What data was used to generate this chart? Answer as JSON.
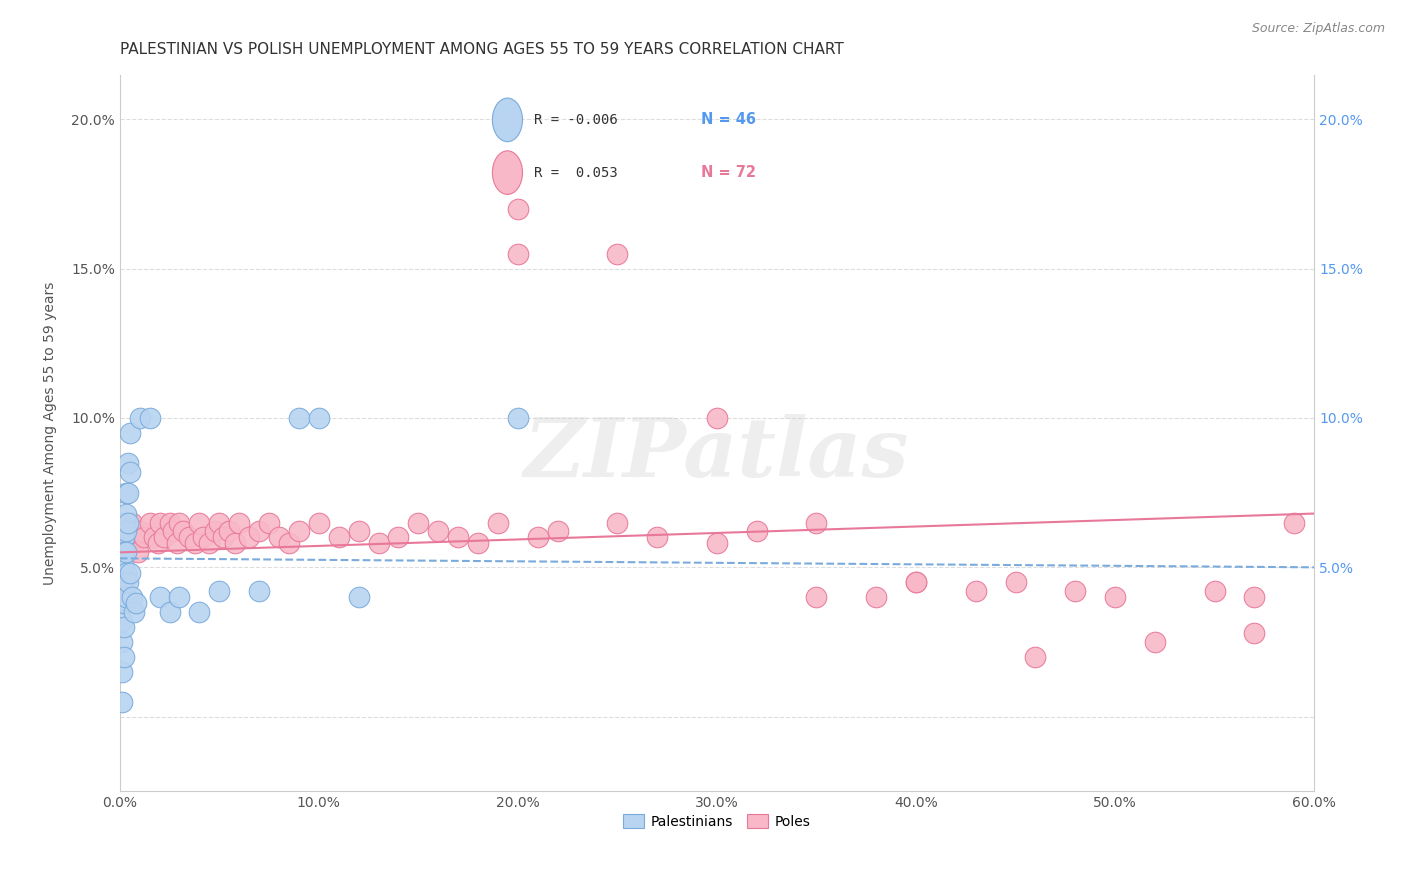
{
  "title": "PALESTINIAN VS POLISH UNEMPLOYMENT AMONG AGES 55 TO 59 YEARS CORRELATION CHART",
  "source": "Source: ZipAtlas.com",
  "ylabel": "Unemployment Among Ages 55 to 59 years",
  "xlim": [
    0,
    0.6
  ],
  "ylim": [
    -0.025,
    0.215
  ],
  "xticks": [
    0.0,
    0.1,
    0.2,
    0.3,
    0.4,
    0.5,
    0.6
  ],
  "xticklabels": [
    "0.0%",
    "10.0%",
    "20.0%",
    "30.0%",
    "40.0%",
    "50.0%",
    "60.0%"
  ],
  "yticks_left": [
    0.0,
    0.05,
    0.1,
    0.15,
    0.2
  ],
  "yticklabels_left": [
    "",
    "5.0%",
    "10.0%",
    "15.0%",
    "20.0%"
  ],
  "yticks_right": [
    0.05,
    0.1,
    0.15,
    0.2
  ],
  "yticklabels_right": [
    "5.0%",
    "10.0%",
    "15.0%",
    "20.0%"
  ],
  "legend_r_blue": "R = -0.006",
  "legend_n_blue": "N = 46",
  "legend_r_pink": "R =  0.053",
  "legend_n_pink": "N = 72",
  "blue_color": "#b8d4f0",
  "pink_color": "#f8b8c8",
  "trend_blue_color": "#7aabdc",
  "trend_pink_color": "#e8789a",
  "blue_x": [
    0.001,
    0.001,
    0.001,
    0.001,
    0.001,
    0.001,
    0.001,
    0.001,
    0.001,
    0.001,
    0.002,
    0.002,
    0.002,
    0.002,
    0.002,
    0.002,
    0.002,
    0.002,
    0.003,
    0.003,
    0.003,
    0.003,
    0.003,
    0.003,
    0.004,
    0.004,
    0.004,
    0.004,
    0.005,
    0.005,
    0.005,
    0.006,
    0.007,
    0.008,
    0.01,
    0.015,
    0.02,
    0.025,
    0.03,
    0.04,
    0.05,
    0.07,
    0.09,
    0.1,
    0.12,
    0.2
  ],
  "blue_y": [
    0.055,
    0.05,
    0.048,
    0.045,
    0.042,
    0.038,
    0.032,
    0.025,
    0.015,
    0.005,
    0.065,
    0.06,
    0.055,
    0.05,
    0.045,
    0.038,
    0.03,
    0.02,
    0.075,
    0.068,
    0.062,
    0.055,
    0.048,
    0.04,
    0.085,
    0.075,
    0.065,
    0.045,
    0.095,
    0.082,
    0.048,
    0.04,
    0.035,
    0.038,
    0.1,
    0.1,
    0.04,
    0.035,
    0.04,
    0.035,
    0.042,
    0.042,
    0.1,
    0.1,
    0.04,
    0.1
  ],
  "pink_x": [
    0.001,
    0.002,
    0.003,
    0.005,
    0.006,
    0.007,
    0.008,
    0.009,
    0.01,
    0.012,
    0.015,
    0.017,
    0.019,
    0.02,
    0.022,
    0.025,
    0.027,
    0.029,
    0.03,
    0.032,
    0.035,
    0.038,
    0.04,
    0.042,
    0.045,
    0.048,
    0.05,
    0.052,
    0.055,
    0.058,
    0.06,
    0.065,
    0.07,
    0.075,
    0.08,
    0.085,
    0.09,
    0.1,
    0.11,
    0.12,
    0.13,
    0.14,
    0.15,
    0.16,
    0.17,
    0.18,
    0.19,
    0.2,
    0.21,
    0.22,
    0.25,
    0.27,
    0.3,
    0.32,
    0.35,
    0.38,
    0.4,
    0.43,
    0.45,
    0.48,
    0.5,
    0.52,
    0.55,
    0.57,
    0.59,
    0.2,
    0.25,
    0.3,
    0.35,
    0.4,
    0.46,
    0.57
  ],
  "pink_y": [
    0.055,
    0.058,
    0.06,
    0.062,
    0.065,
    0.058,
    0.06,
    0.055,
    0.062,
    0.06,
    0.065,
    0.06,
    0.058,
    0.065,
    0.06,
    0.065,
    0.062,
    0.058,
    0.065,
    0.062,
    0.06,
    0.058,
    0.065,
    0.06,
    0.058,
    0.062,
    0.065,
    0.06,
    0.062,
    0.058,
    0.065,
    0.06,
    0.062,
    0.065,
    0.06,
    0.058,
    0.062,
    0.065,
    0.06,
    0.062,
    0.058,
    0.06,
    0.065,
    0.062,
    0.06,
    0.058,
    0.065,
    0.155,
    0.06,
    0.062,
    0.065,
    0.06,
    0.058,
    0.062,
    0.065,
    0.04,
    0.045,
    0.042,
    0.045,
    0.042,
    0.04,
    0.025,
    0.042,
    0.04,
    0.065,
    0.17,
    0.155,
    0.1,
    0.04,
    0.045,
    0.02,
    0.028
  ],
  "background_color": "#ffffff",
  "grid_color": "#dddddd",
  "title_fontsize": 11,
  "axis_fontsize": 10,
  "tick_fontsize": 10,
  "watermark": "ZIPatlas",
  "watermark_color": "#d0d0d0",
  "blue_trend_start_y": 0.053,
  "blue_trend_end_y": 0.05,
  "pink_trend_start_y": 0.055,
  "pink_trend_end_y": 0.068
}
